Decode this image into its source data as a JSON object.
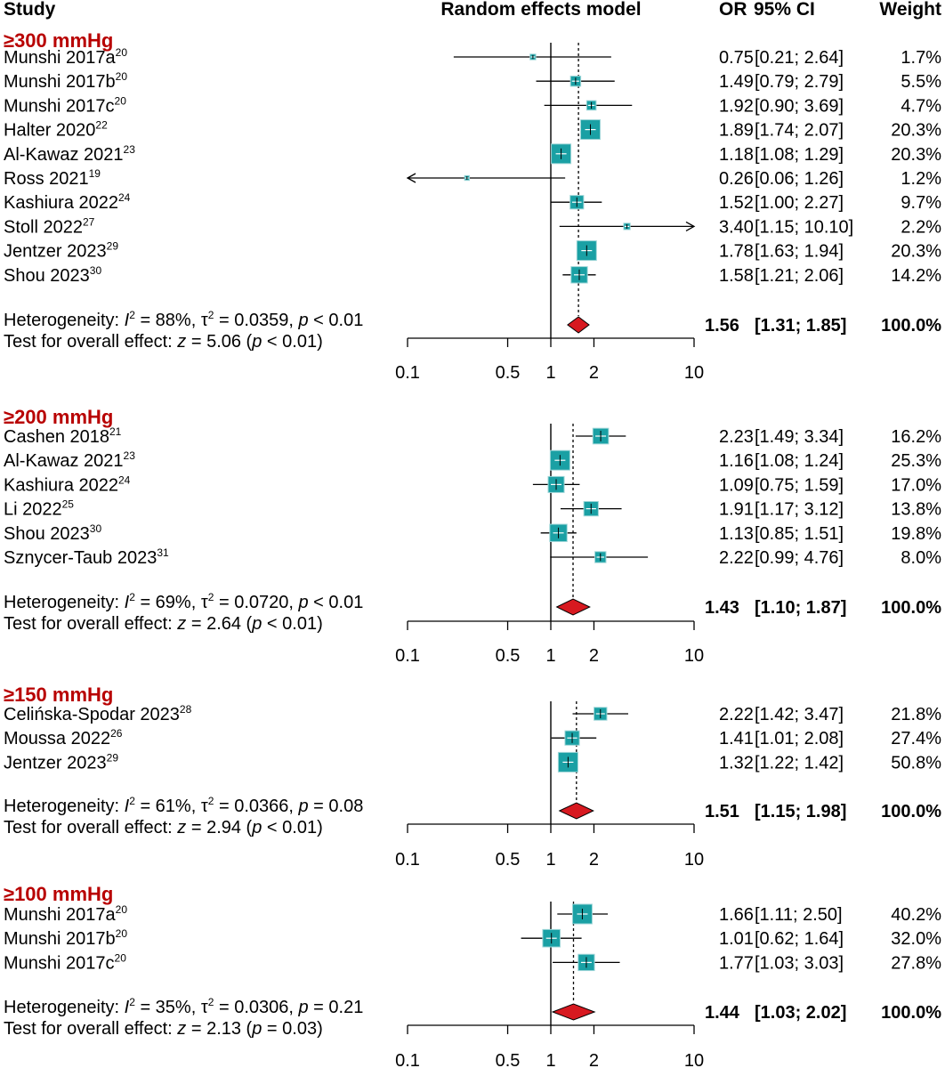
{
  "chart_data": {
    "type": "forest",
    "scale": "log",
    "xlim": [
      0.1,
      10
    ],
    "ticks": [
      "0.1",
      "0.5",
      "1",
      "2",
      "10"
    ],
    "headers": {
      "study": "Study",
      "model": "Random effects model",
      "or": "OR",
      "ci": "95% CI",
      "weight": "Weight"
    },
    "colors": {
      "box": "#1aa0a4",
      "boxBorder": "#9fd6d8",
      "diamond": "#d71920",
      "groupTitle": "#b80000"
    },
    "groups": [
      {
        "title": "≥300 mmHg",
        "studies": [
          {
            "name": "Munshi 2017a",
            "ref": "20",
            "or": 0.75,
            "lo": 0.21,
            "hi": 2.64,
            "or_text": "0.75",
            "ci_text": "[0.21;  2.64]",
            "weight_text": "1.7%",
            "weight": 1.7
          },
          {
            "name": "Munshi 2017b",
            "ref": "20",
            "or": 1.49,
            "lo": 0.79,
            "hi": 2.79,
            "or_text": "1.49",
            "ci_text": "[0.79;  2.79]",
            "weight_text": "5.5%",
            "weight": 5.5
          },
          {
            "name": "Munshi 2017c",
            "ref": "20",
            "or": 1.92,
            "lo": 0.9,
            "hi": 3.69,
            "or_text": "1.92",
            "ci_text": "[0.90;  3.69]",
            "weight_text": "4.7%",
            "weight": 4.7
          },
          {
            "name": "Halter 2020",
            "ref": "22",
            "or": 1.89,
            "lo": 1.74,
            "hi": 2.07,
            "or_text": "1.89",
            "ci_text": "[1.74;  2.07]",
            "weight_text": "20.3%",
            "weight": 20.3
          },
          {
            "name": "Al-Kawaz 2021",
            "ref": "23",
            "or": 1.18,
            "lo": 1.08,
            "hi": 1.29,
            "or_text": "1.18",
            "ci_text": "[1.08;  1.29]",
            "weight_text": "20.3%",
            "weight": 20.3
          },
          {
            "name": "Ross 2021",
            "ref": "19",
            "or": 0.26,
            "lo": 0.06,
            "hi": 1.26,
            "or_text": "0.26",
            "ci_text": "[0.06;  1.26]",
            "weight_text": "1.2%",
            "weight": 1.2
          },
          {
            "name": "Kashiura 2022",
            "ref": "24",
            "or": 1.52,
            "lo": 1.0,
            "hi": 2.27,
            "or_text": "1.52",
            "ci_text": "[1.00;  2.27]",
            "weight_text": "9.7%",
            "weight": 9.7
          },
          {
            "name": "Stoll 2022",
            "ref": "27",
            "or": 3.4,
            "lo": 1.15,
            "hi": 10.1,
            "or_text": "3.40",
            "ci_text": "[1.15; 10.10]",
            "weight_text": "2.2%",
            "weight": 2.2
          },
          {
            "name": "Jentzer 2023",
            "ref": "29",
            "or": 1.78,
            "lo": 1.63,
            "hi": 1.94,
            "or_text": "1.78",
            "ci_text": "[1.63;  1.94]",
            "weight_text": "20.3%",
            "weight": 20.3
          },
          {
            "name": "Shou 2023",
            "ref": "30",
            "or": 1.58,
            "lo": 1.21,
            "hi": 2.06,
            "or_text": "1.58",
            "ci_text": "[1.21;  2.06]",
            "weight_text": "14.2%",
            "weight": 14.2
          }
        ],
        "pooled": {
          "or": 1.56,
          "lo": 1.31,
          "hi": 1.85,
          "or_text": "1.56",
          "ci_text": "[1.31;  1.85]",
          "weight_text": "100.0%"
        },
        "heterogeneity": {
          "prefix": "Heterogeneity: ",
          "i2_value": " = 88%, ",
          "tau2_value": " = 0.0359, ",
          "p_value": " < 0.01"
        },
        "overall": {
          "prefix": "Test for overall effect: ",
          "z_value": " = 5.06 (",
          "p_value": " < 0.01)"
        }
      },
      {
        "title": "≥200 mmHg",
        "studies": [
          {
            "name": "Cashen 2018",
            "ref": "21",
            "or": 2.23,
            "lo": 1.49,
            "hi": 3.34,
            "or_text": "2.23",
            "ci_text": "[1.49; 3.34]",
            "weight_text": "16.2%",
            "weight": 16.2
          },
          {
            "name": "Al-Kawaz 2021",
            "ref": "23",
            "or": 1.16,
            "lo": 1.08,
            "hi": 1.24,
            "or_text": "1.16",
            "ci_text": "[1.08; 1.24]",
            "weight_text": "25.3%",
            "weight": 25.3
          },
          {
            "name": "Kashiura 2022",
            "ref": "24",
            "or": 1.09,
            "lo": 0.75,
            "hi": 1.59,
            "or_text": "1.09",
            "ci_text": "[0.75; 1.59]",
            "weight_text": "17.0%",
            "weight": 17.0
          },
          {
            "name": "Li 2022",
            "ref": "25",
            "or": 1.91,
            "lo": 1.17,
            "hi": 3.12,
            "or_text": "1.91",
            "ci_text": "[1.17; 3.12]",
            "weight_text": "13.8%",
            "weight": 13.8
          },
          {
            "name": "Shou 2023",
            "ref": "30",
            "or": 1.13,
            "lo": 0.85,
            "hi": 1.51,
            "or_text": "1.13",
            "ci_text": "[0.85; 1.51]",
            "weight_text": "19.8%",
            "weight": 19.8
          },
          {
            "name": "Sznycer-Taub 2023",
            "ref": "31",
            "or": 2.22,
            "lo": 0.99,
            "hi": 4.76,
            "or_text": "2.22",
            "ci_text": "[0.99; 4.76]",
            "weight_text": "8.0%",
            "weight": 8.0
          }
        ],
        "pooled": {
          "or": 1.43,
          "lo": 1.1,
          "hi": 1.87,
          "or_text": "1.43",
          "ci_text": "[1.10; 1.87]",
          "weight_text": "100.0%"
        },
        "heterogeneity": {
          "prefix": "Heterogeneity: ",
          "i2_value": " = 69%, ",
          "tau2_value": " = 0.0720, ",
          "p_value": " < 0.01"
        },
        "overall": {
          "prefix": "Test for overall effect: ",
          "z_value": " = 2.64 (",
          "p_value": " < 0.01)"
        }
      },
      {
        "title": "≥150 mmHg",
        "studies": [
          {
            "name": "Celińska-Spodar 2023",
            "ref": "28",
            "or": 2.22,
            "lo": 1.42,
            "hi": 3.47,
            "or_text": "2.22",
            "ci_text": "[1.42; 3.47]",
            "weight_text": "21.8%",
            "weight": 21.8
          },
          {
            "name": "Moussa 2022",
            "ref": "26",
            "or": 1.41,
            "lo": 1.01,
            "hi": 2.08,
            "or_text": "1.41",
            "ci_text": "[1.01; 2.08]",
            "weight_text": "27.4%",
            "weight": 27.4
          },
          {
            "name": "Jentzer 2023",
            "ref": "29",
            "or": 1.32,
            "lo": 1.22,
            "hi": 1.42,
            "or_text": "1.32",
            "ci_text": "[1.22; 1.42]",
            "weight_text": "50.8%",
            "weight": 50.8
          }
        ],
        "pooled": {
          "or": 1.51,
          "lo": 1.15,
          "hi": 1.98,
          "or_text": "1.51",
          "ci_text": "[1.15; 1.98]",
          "weight_text": "100.0%"
        },
        "heterogeneity": {
          "prefix": "Heterogeneity: ",
          "i2_value": " = 61%, ",
          "tau2_value": " = 0.0366, ",
          "p_value": " = 0.08"
        },
        "overall": {
          "prefix": "Test for overall effect: ",
          "z_value": " = 2.94 (",
          "p_value": " < 0.01)"
        }
      },
      {
        "title": "≥100 mmHg",
        "studies": [
          {
            "name": "Munshi 2017a",
            "ref": "20",
            "or": 1.66,
            "lo": 1.11,
            "hi": 2.5,
            "or_text": "1.66",
            "ci_text": "[1.11; 2.50]",
            "weight_text": "40.2%",
            "weight": 40.2
          },
          {
            "name": "Munshi 2017b",
            "ref": "20",
            "or": 1.01,
            "lo": 0.62,
            "hi": 1.64,
            "or_text": "1.01",
            "ci_text": "[0.62; 1.64]",
            "weight_text": "32.0%",
            "weight": 32.0
          },
          {
            "name": "Munshi 2017c",
            "ref": "20",
            "or": 1.77,
            "lo": 1.03,
            "hi": 3.03,
            "or_text": "1.77",
            "ci_text": "[1.03; 3.03]",
            "weight_text": "27.8%",
            "weight": 27.8
          }
        ],
        "pooled": {
          "or": 1.44,
          "lo": 1.03,
          "hi": 2.02,
          "or_text": "1.44",
          "ci_text": "[1.03; 2.02]",
          "weight_text": "100.0%"
        },
        "heterogeneity": {
          "prefix": "Heterogeneity: ",
          "i2_value": " = 35%, ",
          "tau2_value": " = 0.0306, ",
          "p_value": " = 0.21"
        },
        "overall": {
          "prefix": "Test for overall effect: ",
          "z_value": " = 2.13 (",
          "p_value": " = 0.03)"
        }
      }
    ]
  }
}
